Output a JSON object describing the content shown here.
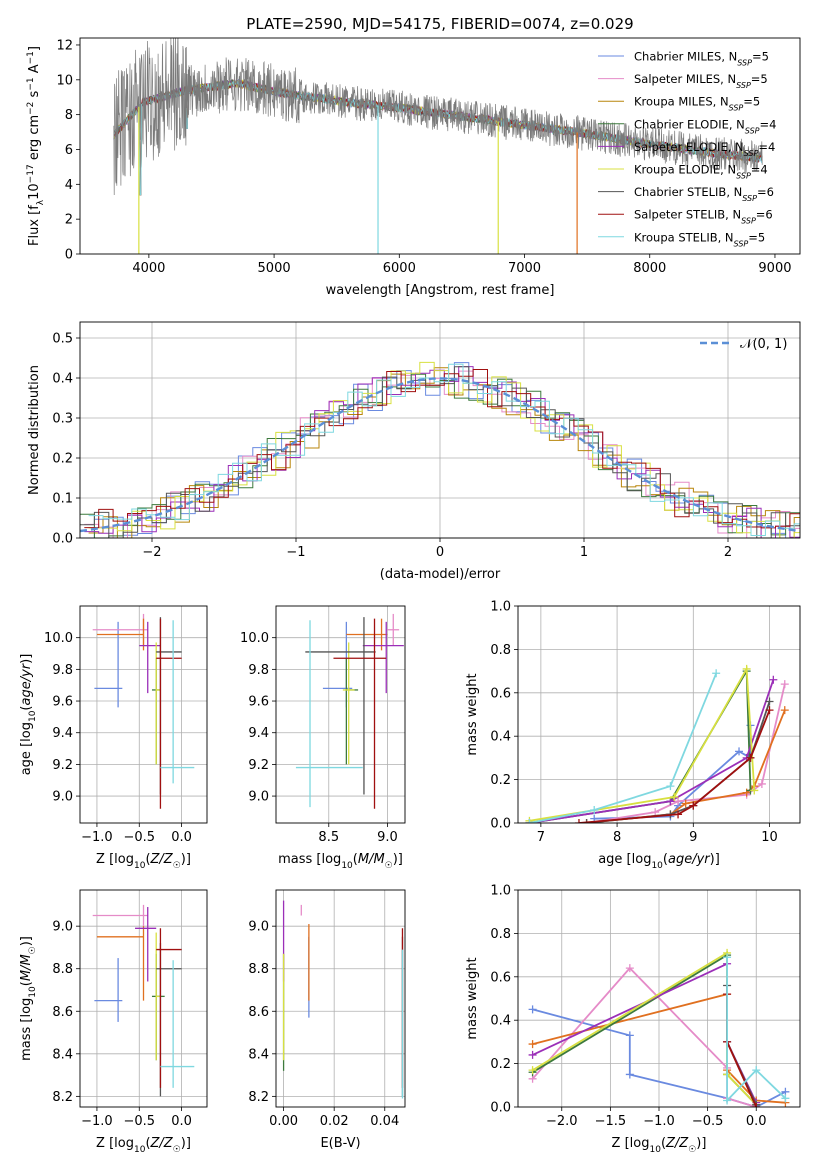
{
  "figure": {
    "title": "PLATE=2590, MJD=54175, FIBERID=0074, z=0.029"
  },
  "legend_entries": [
    {
      "label": "Chabrier MILES, N",
      "sub": "SSP",
      "suffix": "=5",
      "color": "#6a8ae0"
    },
    {
      "label": "Salpeter MILES, N",
      "sub": "SSP",
      "suffix": "=5",
      "color": "#e58bc8"
    },
    {
      "label": "Kroupa MILES, N",
      "sub": "SSP",
      "suffix": "=5",
      "color": "#b8860b"
    },
    {
      "label": "Chabrier ELODIE, N",
      "sub": "SSP",
      "suffix": "=4",
      "color": "#3d7a3d"
    },
    {
      "label": "Salpeter ELODIE, N",
      "sub": "SSP",
      "suffix": "=4",
      "color": "#9b2fb8"
    },
    {
      "label": "Kroupa ELODIE, N",
      "sub": "SSP",
      "suffix": "=4",
      "color": "#d8e040"
    },
    {
      "label": "Chabrier STELIB, N",
      "sub": "SSP",
      "suffix": "=6",
      "color": "#555555"
    },
    {
      "label": "Salpeter STELIB, N",
      "sub": "SSP",
      "suffix": "=6",
      "color": "#a01010"
    },
    {
      "label": "Kroupa STELIB, N",
      "sub": "SSP",
      "suffix": "=5",
      "color": "#7fd8e0"
    }
  ],
  "chart_data": [
    {
      "id": "spectrum",
      "type": "line",
      "title": "PLATE=2590, MJD=54175, FIBERID=0074, z=0.029",
      "xlabel": "wavelength [Angstrom, rest frame]",
      "ylabel": "Flux [f_λ10^-17 erg cm^-2 s^-1 A^-1]",
      "xlim": [
        3450,
        9200
      ],
      "ylim": [
        0,
        12.4
      ],
      "xticks": [
        4000,
        5000,
        6000,
        7000,
        8000,
        9000
      ],
      "yticks": [
        0,
        2,
        4,
        6,
        8,
        10,
        12
      ],
      "x_range_data": [
        3720,
        8900
      ],
      "continuum": [
        [
          3720,
          6.8
        ],
        [
          3950,
          8.7
        ],
        [
          4300,
          9.4
        ],
        [
          4700,
          9.8
        ],
        [
          5100,
          9.2
        ],
        [
          5600,
          8.7
        ],
        [
          6000,
          8.4
        ],
        [
          6500,
          7.9
        ],
        [
          7000,
          7.4
        ],
        [
          7500,
          6.9
        ],
        [
          8000,
          6.3
        ],
        [
          8500,
          5.8
        ],
        [
          8900,
          5.5
        ]
      ],
      "grid": false,
      "legend_position": "upper right"
    },
    {
      "id": "residuals",
      "type": "histogram",
      "xlabel": "(data-model)/error",
      "ylabel": "Normed distribution",
      "xlim": [
        -2.5,
        2.5
      ],
      "ylim": [
        0,
        0.54
      ],
      "xticks": [
        -2,
        -1,
        0,
        1,
        2
      ],
      "yticks": [
        0.0,
        0.1,
        0.2,
        0.3,
        0.4,
        0.5
      ],
      "bin_width": 0.1,
      "reference_curve": {
        "name": "𝒩(0, 1)",
        "mean": 0,
        "sigma": 1,
        "color": "#5b8fd6"
      },
      "grid": true,
      "legend_position": "upper right"
    },
    {
      "id": "age-vs-Z",
      "type": "errorbar",
      "xlabel": "Z [log10(Z/Z☉)]",
      "ylabel": "age  [log10(age/yr)]",
      "xlim": [
        -1.2,
        0.3
      ],
      "ylim": [
        8.83,
        10.2
      ],
      "xticks": [
        -1.0,
        -0.5,
        0.0
      ],
      "yticks": [
        9.0,
        9.2,
        9.4,
        9.6,
        9.8,
        10.0
      ],
      "points": [
        {
          "x": -0.75,
          "y": 9.68,
          "xerr": [
            0.28,
            0.05
          ],
          "yerr": [
            0.12,
            0.42
          ],
          "color": "#6a8ae0"
        },
        {
          "x": -0.45,
          "y": 10.05,
          "xerr": [
            0.6,
            0.05
          ],
          "yerr": [
            0.1,
            0.1
          ],
          "color": "#e58bc8"
        },
        {
          "x": -0.45,
          "y": 10.02,
          "xerr": [
            0.55,
            0.0
          ],
          "yerr": [
            0.1,
            0.1
          ],
          "color": "#e07020"
        },
        {
          "x": -0.3,
          "y": 9.67,
          "xerr": [
            0.05,
            0.05
          ],
          "yerr": [
            0.47,
            0.2
          ],
          "color": "#3d7a3d"
        },
        {
          "x": -0.4,
          "y": 9.95,
          "xerr": [
            0.1,
            0.15
          ],
          "yerr": [
            0.3,
            0.15
          ],
          "color": "#9b2fb8"
        },
        {
          "x": -0.3,
          "y": 9.67,
          "xerr": [
            0.0,
            0.05
          ],
          "yerr": [
            0.47,
            0.3
          ],
          "color": "#d8e040"
        },
        {
          "x": -0.25,
          "y": 9.91,
          "xerr": [
            0.05,
            0.25
          ],
          "yerr": [
            0.9,
            0.22
          ],
          "color": "#555555"
        },
        {
          "x": -0.25,
          "y": 9.87,
          "xerr": [
            0.05,
            0.25
          ],
          "yerr": [
            0.95,
            0.25
          ],
          "color": "#a01010"
        },
        {
          "x": -0.1,
          "y": 9.18,
          "xerr": [
            0.15,
            0.25
          ],
          "yerr": [
            0.1,
            0.93
          ],
          "color": "#7fd8e0"
        }
      ],
      "grid": true
    },
    {
      "id": "age-vs-mass",
      "type": "errorbar",
      "xlabel": "mass [log10(M/M☉)]",
      "ylabel": "",
      "xlim": [
        8.05,
        9.15
      ],
      "ylim": [
        8.83,
        10.2
      ],
      "xticks": [
        8.5,
        9.0
      ],
      "yticks": [
        9.0,
        9.2,
        9.4,
        9.6,
        9.8,
        10.0
      ],
      "points": [
        {
          "x": 8.65,
          "y": 9.68,
          "xerr": [
            0.2,
            0.05
          ],
          "yerr": [
            0.12,
            0.42
          ],
          "color": "#6a8ae0"
        },
        {
          "x": 9.05,
          "y": 10.05,
          "xerr": [
            0.05,
            0.05
          ],
          "yerr": [
            0.1,
            0.1
          ],
          "color": "#e58bc8"
        },
        {
          "x": 8.95,
          "y": 10.02,
          "xerr": [
            0.3,
            0.05
          ],
          "yerr": [
            0.1,
            0.1
          ],
          "color": "#e07020"
        },
        {
          "x": 8.65,
          "y": 9.67,
          "xerr": [
            0.0,
            0.1
          ],
          "yerr": [
            0.47,
            0.2
          ],
          "color": "#3d7a3d"
        },
        {
          "x": 8.99,
          "y": 9.95,
          "xerr": [
            0.2,
            0.15
          ],
          "yerr": [
            0.3,
            0.15
          ],
          "color": "#9b2fb8"
        },
        {
          "x": 8.67,
          "y": 9.67,
          "xerr": [
            0.05,
            0.05
          ],
          "yerr": [
            0.47,
            0.3
          ],
          "color": "#d8e040"
        },
        {
          "x": 8.8,
          "y": 9.91,
          "xerr": [
            0.5,
            0.1
          ],
          "yerr": [
            0.9,
            0.22
          ],
          "color": "#555555"
        },
        {
          "x": 8.89,
          "y": 9.87,
          "xerr": [
            0.35,
            0.1
          ],
          "yerr": [
            0.95,
            0.25
          ],
          "color": "#a01010"
        },
        {
          "x": 8.34,
          "y": 9.18,
          "xerr": [
            0.12,
            0.45
          ],
          "yerr": [
            0.25,
            0.93
          ],
          "color": "#7fd8e0"
        }
      ],
      "grid": true
    },
    {
      "id": "mass-weight-vs-age",
      "type": "line",
      "xlabel": "age  [log10(age/yr)]",
      "ylabel": "mass weight",
      "xlim": [
        6.7,
        10.4
      ],
      "ylim": [
        0.0,
        1.0
      ],
      "xticks": [
        7,
        8,
        9,
        10
      ],
      "yticks": [
        0.0,
        0.2,
        0.4,
        0.6,
        0.8,
        1.0
      ],
      "series": [
        {
          "color": "#6a8ae0",
          "x": [
            7.7,
            8.7,
            8.8,
            9.6,
            9.75,
            9.75
          ],
          "y": [
            0.02,
            0.03,
            0.08,
            0.33,
            0.3,
            0.45
          ]
        },
        {
          "color": "#e58bc8",
          "x": [
            7.6,
            8.5,
            8.8,
            9.7,
            9.9,
            10.2
          ],
          "y": [
            0.0,
            0.05,
            0.1,
            0.13,
            0.18,
            0.64
          ]
        },
        {
          "color": "#e07020",
          "x": [
            7.6,
            8.7,
            8.9,
            9.7,
            9.8,
            10.2
          ],
          "y": [
            0.0,
            0.04,
            0.09,
            0.14,
            0.17,
            0.52
          ]
        },
        {
          "color": "#3d7a3d",
          "x": [
            6.85,
            8.7,
            9.7,
            9.75
          ],
          "y": [
            0.0,
            0.1,
            0.7,
            0.15
          ]
        },
        {
          "color": "#9b2fb8",
          "x": [
            6.85,
            8.7,
            9.7,
            10.05
          ],
          "y": [
            0.0,
            0.1,
            0.3,
            0.66
          ]
        },
        {
          "color": "#d8e040",
          "x": [
            6.85,
            8.75,
            9.7,
            9.8
          ],
          "y": [
            0.01,
            0.12,
            0.71,
            0.15
          ]
        },
        {
          "color": "#555555",
          "x": [
            7.6,
            8.7,
            9.0,
            9.75,
            10.0
          ],
          "y": [
            0.0,
            0.04,
            0.08,
            0.3,
            0.56
          ]
        },
        {
          "color": "#a01010",
          "x": [
            7.5,
            8.8,
            9.0,
            9.75,
            10.0
          ],
          "y": [
            0.0,
            0.04,
            0.08,
            0.3,
            0.52
          ]
        },
        {
          "color": "#7fd8e0",
          "x": [
            6.85,
            7.7,
            8.7,
            9.3
          ],
          "y": [
            0.0,
            0.06,
            0.17,
            0.69
          ]
        }
      ],
      "grid": true
    },
    {
      "id": "mass-vs-Z",
      "type": "errorbar",
      "xlabel": "Z [log10(Z/Z☉)]",
      "ylabel": "mass [log10(M/M☉)]",
      "xlim": [
        -1.2,
        0.3
      ],
      "ylim": [
        8.15,
        9.17
      ],
      "xticks": [
        -1.0,
        -0.5,
        0.0
      ],
      "yticks": [
        8.2,
        8.4,
        8.6,
        8.8,
        9.0
      ],
      "points": [
        {
          "x": -0.75,
          "y": 8.65,
          "xerr": [
            0.28,
            0.05
          ],
          "yerr": [
            0.1,
            0.2
          ],
          "color": "#6a8ae0"
        },
        {
          "x": -0.45,
          "y": 9.05,
          "xerr": [
            0.6,
            0.05
          ],
          "yerr": [
            0.05,
            0.05
          ],
          "color": "#e58bc8"
        },
        {
          "x": -0.45,
          "y": 8.95,
          "xerr": [
            0.55,
            0.0
          ],
          "yerr": [
            0.3,
            0.05
          ],
          "color": "#e07020"
        },
        {
          "x": -0.3,
          "y": 8.67,
          "xerr": [
            0.05,
            0.1
          ],
          "yerr": [
            0.3,
            0.2
          ],
          "color": "#3d7a3d"
        },
        {
          "x": -0.4,
          "y": 8.99,
          "xerr": [
            0.15,
            0.1
          ],
          "yerr": [
            0.25,
            0.1
          ],
          "color": "#9b2fb8"
        },
        {
          "x": -0.3,
          "y": 8.67,
          "xerr": [
            0.0,
            0.05
          ],
          "yerr": [
            0.3,
            0.3
          ],
          "color": "#d8e040"
        },
        {
          "x": -0.25,
          "y": 8.8,
          "xerr": [
            0.05,
            0.25
          ],
          "yerr": [
            0.6,
            0.12
          ],
          "color": "#555555"
        },
        {
          "x": -0.25,
          "y": 8.89,
          "xerr": [
            0.05,
            0.25
          ],
          "yerr": [
            0.65,
            0.1
          ],
          "color": "#a01010"
        },
        {
          "x": -0.1,
          "y": 8.34,
          "xerr": [
            0.15,
            0.25
          ],
          "yerr": [
            0.1,
            0.5
          ],
          "color": "#7fd8e0"
        }
      ],
      "grid": true
    },
    {
      "id": "mass-vs-ebv",
      "type": "errorbar",
      "xlabel": "E(B-V)",
      "ylabel": "",
      "xlim": [
        -0.003,
        0.048
      ],
      "ylim": [
        8.15,
        9.17
      ],
      "xticks": [
        0.0,
        0.02,
        0.04
      ],
      "yticks": [
        8.2,
        8.4,
        8.6,
        8.8,
        9.0
      ],
      "points": [
        {
          "x": 0.01,
          "y": 8.65,
          "xerr": [
            0,
            0
          ],
          "yerr": [
            0.08,
            0.3
          ],
          "color": "#6a8ae0"
        },
        {
          "x": 0.007,
          "y": 9.05,
          "xerr": [
            0,
            0
          ],
          "yerr": [
            0.0,
            0.05
          ],
          "color": "#e58bc8"
        },
        {
          "x": 0.01,
          "y": 8.95,
          "xerr": [
            0,
            0
          ],
          "yerr": [
            0.3,
            0.06
          ],
          "color": "#e07020"
        },
        {
          "x": 0.0,
          "y": 8.67,
          "xerr": [
            0,
            0
          ],
          "yerr": [
            0.35,
            0.2
          ],
          "color": "#3d7a3d"
        },
        {
          "x": 0.0,
          "y": 8.99,
          "xerr": [
            0,
            0
          ],
          "yerr": [
            0.25,
            0.13
          ],
          "color": "#9b2fb8"
        },
        {
          "x": 0.0,
          "y": 8.67,
          "xerr": [
            0,
            0
          ],
          "yerr": [
            0.3,
            0.2
          ],
          "color": "#d8e040"
        },
        {
          "x": 0.047,
          "y": 8.8,
          "xerr": [
            0,
            0
          ],
          "yerr": [
            0.6,
            0.15
          ],
          "color": "#555555"
        },
        {
          "x": 0.047,
          "y": 8.89,
          "xerr": [
            0,
            0
          ],
          "yerr": [
            0.65,
            0.1
          ],
          "color": "#a01010"
        },
        {
          "x": 0.047,
          "y": 8.34,
          "xerr": [
            0,
            0
          ],
          "yerr": [
            0.15,
            0.55
          ],
          "color": "#7fd8e0"
        }
      ],
      "grid": true
    },
    {
      "id": "mass-weight-vs-Z",
      "type": "line",
      "xlabel": "Z [log10(Z/Z☉)]",
      "ylabel": "mass weight",
      "xlim": [
        -2.45,
        0.45
      ],
      "ylim": [
        0.0,
        1.0
      ],
      "xticks": [
        -2.0,
        -1.5,
        -1.0,
        -0.5,
        0.0
      ],
      "yticks": [
        0.0,
        0.2,
        0.4,
        0.6,
        0.8,
        1.0
      ],
      "series": [
        {
          "color": "#6a8ae0",
          "x": [
            -2.3,
            -1.3,
            -1.3,
            -0.3,
            0.0,
            0.3
          ],
          "y": [
            0.45,
            0.33,
            0.15,
            0.04,
            0.0,
            0.07
          ]
        },
        {
          "color": "#e58bc8",
          "x": [
            -2.3,
            -1.3,
            -0.3,
            -0.3,
            0.0
          ],
          "y": [
            0.13,
            0.64,
            0.18,
            0.04,
            0.0
          ]
        },
        {
          "color": "#e07020",
          "x": [
            -2.3,
            -0.3,
            -0.3,
            0.0,
            0.3
          ],
          "y": [
            0.29,
            0.52,
            0.17,
            0.03,
            0.02
          ]
        },
        {
          "color": "#3d7a3d",
          "x": [
            -2.3,
            -0.3,
            -0.3,
            0.0
          ],
          "y": [
            0.16,
            0.7,
            0.15,
            0.01
          ]
        },
        {
          "color": "#9b2fb8",
          "x": [
            -2.3,
            -0.3,
            -0.3,
            0.0
          ],
          "y": [
            0.24,
            0.66,
            0.3,
            0.02
          ]
        },
        {
          "color": "#d8e040",
          "x": [
            -2.3,
            -0.3,
            -0.3,
            0.0
          ],
          "y": [
            0.17,
            0.71,
            0.15,
            0.01
          ]
        },
        {
          "color": "#555555",
          "x": [
            -0.3,
            -0.3,
            0.0
          ],
          "y": [
            0.56,
            0.3,
            0.01
          ]
        },
        {
          "color": "#a01010",
          "x": [
            -0.3,
            -0.3,
            0.0
          ],
          "y": [
            0.52,
            0.3,
            0.0
          ]
        },
        {
          "color": "#7fd8e0",
          "x": [
            -0.3,
            -0.3,
            0.0,
            0.3
          ],
          "y": [
            0.69,
            0.03,
            0.17,
            0.04
          ]
        }
      ],
      "grid": true
    }
  ]
}
